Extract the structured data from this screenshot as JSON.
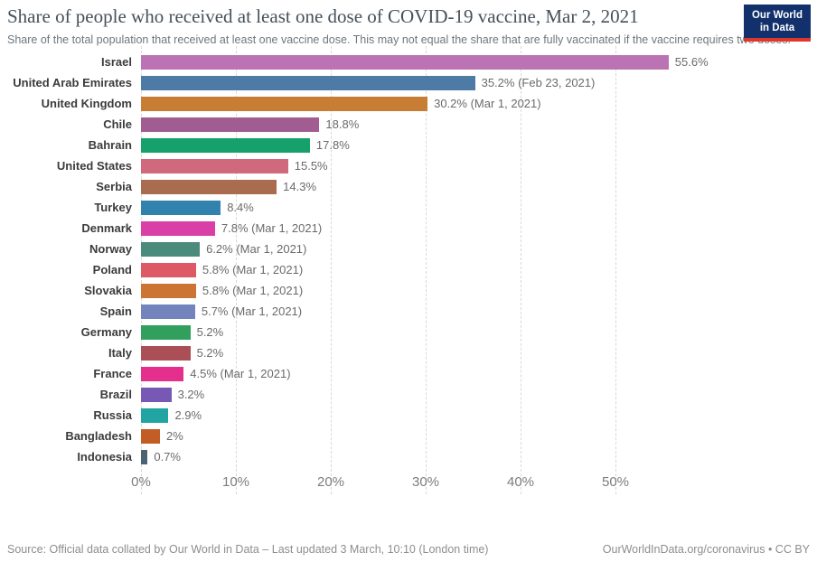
{
  "header": {
    "title": "Share of people who received at least one dose of COVID-19 vaccine, Mar 2, 2021",
    "subtitle": "Share of the total population that received at least one vaccine dose. This may not equal the share that are fully vaccinated if the vaccine requires two doses.",
    "logo": {
      "line1": "Our World",
      "line2": "in Data",
      "bg_color": "#12306b",
      "accent_color": "#e0362c"
    }
  },
  "chart_data": {
    "type": "bar",
    "orientation": "horizontal",
    "title": "Share of people who received at least one dose of COVID-19 vaccine, Mar 2, 2021",
    "xlabel": "",
    "ylabel": "",
    "xlim": [
      0,
      57
    ],
    "grid": true,
    "x_axis": {
      "tick_values": [
        0,
        10,
        20,
        30,
        40,
        50
      ],
      "tick_labels": [
        "0%",
        "10%",
        "20%",
        "30%",
        "40%",
        "50%"
      ]
    },
    "categories": [
      "Israel",
      "United Arab Emirates",
      "United Kingdom",
      "Chile",
      "Bahrain",
      "United States",
      "Serbia",
      "Turkey",
      "Denmark",
      "Norway",
      "Poland",
      "Slovakia",
      "Spain",
      "Germany",
      "Italy",
      "France",
      "Brazil",
      "Russia",
      "Bangladesh",
      "Indonesia"
    ],
    "values": [
      55.6,
      35.2,
      30.2,
      18.8,
      17.8,
      15.5,
      14.3,
      8.4,
      7.8,
      6.2,
      5.8,
      5.8,
      5.7,
      5.2,
      5.2,
      4.5,
      3.2,
      2.9,
      2,
      0.7
    ],
    "series": [
      {
        "country": "Israel",
        "value": 55.6,
        "label": "55.6%",
        "color": "#bb73b4"
      },
      {
        "country": "United Arab Emirates",
        "value": 35.2,
        "label": "35.2% (Feb 23, 2021)",
        "color": "#4e7ba6"
      },
      {
        "country": "United Kingdom",
        "value": 30.2,
        "label": "30.2% (Mar 1, 2021)",
        "color": "#c87d35"
      },
      {
        "country": "Chile",
        "value": 18.8,
        "label": "18.8%",
        "color": "#a15d92"
      },
      {
        "country": "Bahrain",
        "value": 17.8,
        "label": "17.8%",
        "color": "#16a16c"
      },
      {
        "country": "United States",
        "value": 15.5,
        "label": "15.5%",
        "color": "#d0697c"
      },
      {
        "country": "Serbia",
        "value": 14.3,
        "label": "14.3%",
        "color": "#a96c4f"
      },
      {
        "country": "Turkey",
        "value": 8.4,
        "label": "8.4%",
        "color": "#3183ad"
      },
      {
        "country": "Denmark",
        "value": 7.8,
        "label": "7.8% (Mar 1, 2021)",
        "color": "#d93fa7"
      },
      {
        "country": "Norway",
        "value": 6.2,
        "label": "6.2% (Mar 1, 2021)",
        "color": "#4b8b7b"
      },
      {
        "country": "Poland",
        "value": 5.8,
        "label": "5.8% (Mar 1, 2021)",
        "color": "#dd5966"
      },
      {
        "country": "Slovakia",
        "value": 5.8,
        "label": "5.8% (Mar 1, 2021)",
        "color": "#cc7434"
      },
      {
        "country": "Spain",
        "value": 5.7,
        "label": "5.7% (Mar 1, 2021)",
        "color": "#7383bc"
      },
      {
        "country": "Germany",
        "value": 5.2,
        "label": "5.2%",
        "color": "#31a05f"
      },
      {
        "country": "Italy",
        "value": 5.2,
        "label": "5.2%",
        "color": "#ab4f57"
      },
      {
        "country": "France",
        "value": 4.5,
        "label": "4.5% (Mar 1, 2021)",
        "color": "#e52f8c"
      },
      {
        "country": "Brazil",
        "value": 3.2,
        "label": "3.2%",
        "color": "#7759b5"
      },
      {
        "country": "Russia",
        "value": 2.9,
        "label": "2.9%",
        "color": "#22a4a3"
      },
      {
        "country": "Bangladesh",
        "value": 2,
        "label": "2%",
        "color": "#c25d28"
      },
      {
        "country": "Indonesia",
        "value": 0.7,
        "label": "0.7%",
        "color": "#4c6374"
      }
    ],
    "legend": "none"
  },
  "footer": {
    "source": "Source: Official data collated by Our World in Data – Last updated 3 March, 10:10 (London time)",
    "link": "OurWorldInData.org/coronavirus • CC BY"
  }
}
